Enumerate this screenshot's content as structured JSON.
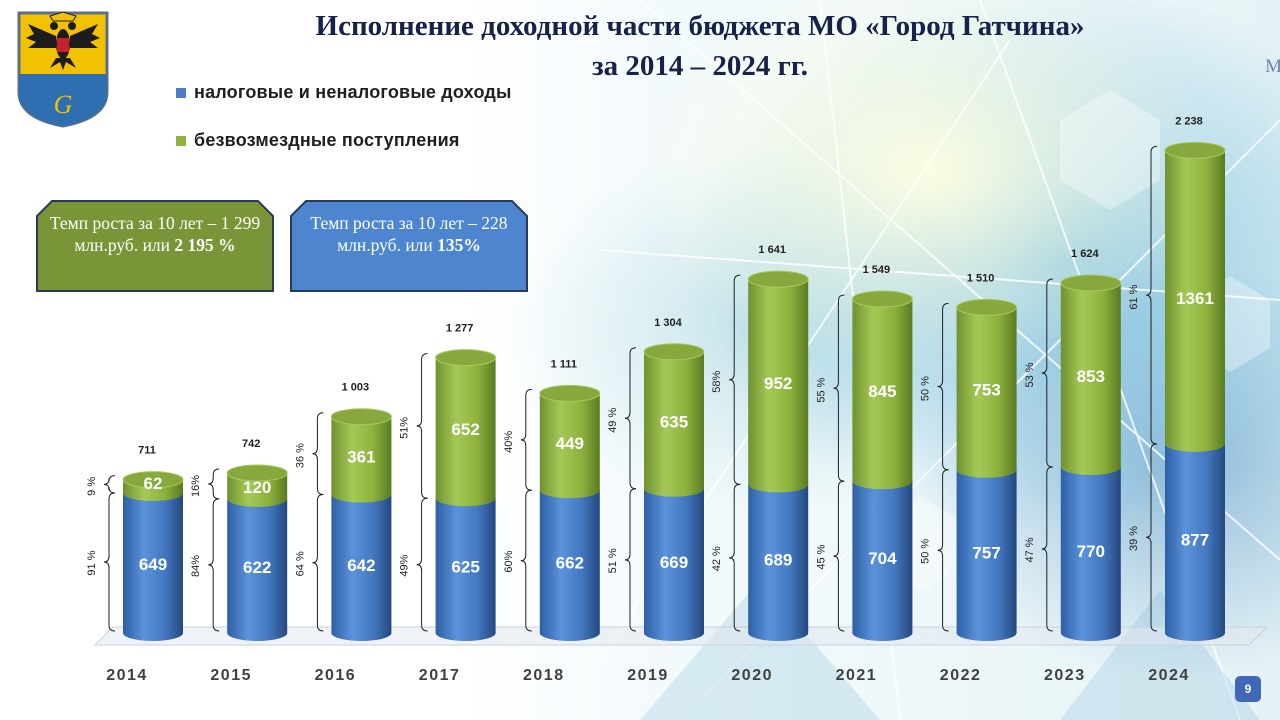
{
  "title": {
    "line1": "Исполнение доходной части бюджета МО «Город Гатчина»",
    "line2": "за 2014 – 2024 гг."
  },
  "corner_text": "М",
  "legend": [
    {
      "label": "налоговые и неналоговые доходы",
      "color": "#4b7fc7"
    },
    {
      "label": "безвозмездные поступления",
      "color": "#8eb33d"
    }
  ],
  "callouts": {
    "green": {
      "text": "Темп роста за 10 лет – 1 299 млн.руб. или ",
      "bold": "2 195 %"
    },
    "blue": {
      "text": "Темп роста за 10 лет – 228 млн.руб. или ",
      "bold": "135%"
    }
  },
  "page_number": "9",
  "chart_data": {
    "type": "bar",
    "stacked": true,
    "categories": [
      "2014",
      "2015",
      "2016",
      "2017",
      "2018",
      "2019",
      "2020",
      "2021",
      "2022",
      "2023",
      "2024"
    ],
    "series": [
      {
        "name": "налоговые и неналоговые доходы",
        "color": "#4b7fc7",
        "values": [
          649,
          622,
          642,
          625,
          662,
          669,
          689,
          704,
          757,
          770,
          877
        ],
        "pct_labels": [
          "91 %",
          "84%",
          "64 %",
          "49%",
          "60%",
          "51 %",
          "42 %",
          "45 %",
          "50 %",
          "47 %",
          "39 %"
        ]
      },
      {
        "name": "безвозмездные поступления",
        "color": "#8eb33d",
        "values": [
          62,
          120,
          361,
          652,
          449,
          635,
          952,
          845,
          753,
          853,
          1361
        ],
        "pct_labels": [
          "9 %",
          "16%",
          "36 %",
          "51%",
          "40%",
          "49 %",
          "58%",
          "55 %",
          "50 %",
          "53 %",
          "61 %"
        ]
      }
    ],
    "totals": [
      "711",
      "742",
      "1 003",
      "1 277",
      "1 111",
      "1 304",
      "1 641",
      "1 549",
      "1 510",
      "1 624",
      "2 238"
    ],
    "ylim": [
      0,
      2300
    ],
    "grid": false
  }
}
